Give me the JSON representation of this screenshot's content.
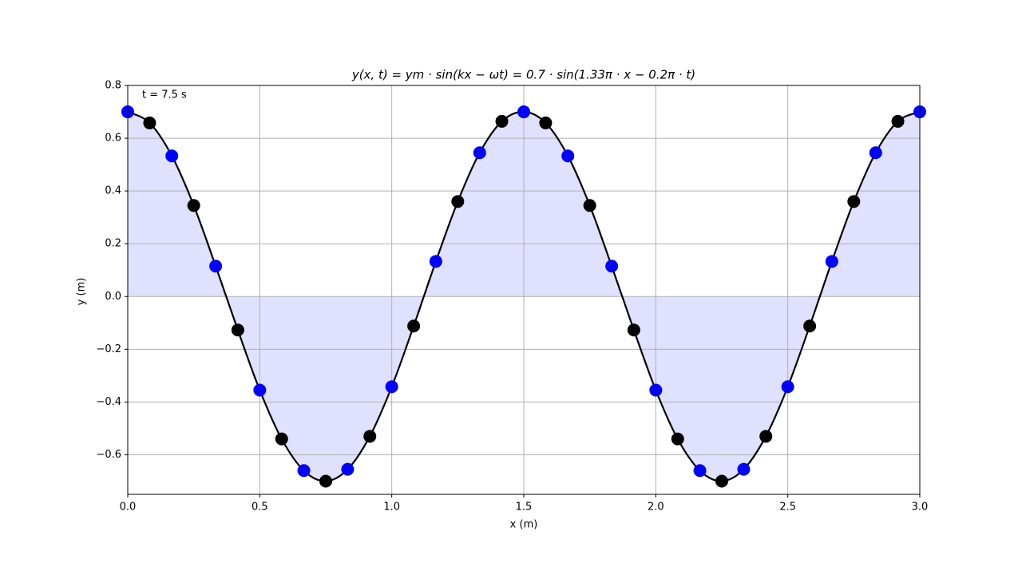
{
  "chart_data": {
    "type": "line",
    "title": "y(x, t) = ym · sin(kx − ωt) = 0.7 · sin(1.33π · x − 0.2π · t)",
    "annotation": "t = 7.5 s",
    "xlabel": "x (m)",
    "ylabel": "y (m)",
    "x": [
      0,
      0.083,
      0.167,
      0.25,
      0.333,
      0.417,
      0.5,
      0.583,
      0.667,
      0.75,
      0.833,
      0.917,
      1,
      1.083,
      1.167,
      1.25,
      1.333,
      1.417,
      1.5,
      1.583,
      1.667,
      1.75,
      1.833,
      1.917,
      2,
      2.083,
      2.167,
      2.25,
      2.333,
      2.417,
      2.5,
      2.583,
      2.667,
      2.75,
      2.833,
      2.917,
      3
    ],
    "values": [
      0.7,
      0.658,
      0.533,
      0.345,
      0.115,
      -0.127,
      -0.355,
      -0.54,
      -0.66,
      -0.7,
      -0.655,
      -0.53,
      -0.342,
      -0.112,
      0.133,
      0.36,
      0.545,
      0.664,
      0.7,
      0.658,
      0.533,
      0.345,
      0.115,
      -0.127,
      -0.355,
      -0.54,
      -0.66,
      -0.7,
      -0.655,
      -0.53,
      -0.342,
      -0.112,
      0.133,
      0.36,
      0.545,
      0.664,
      0.7
    ],
    "color": "#000000",
    "fill_color": "#e0e0ff",
    "marker_colors": [
      "#0000ff",
      "#000000"
    ],
    "xlim": [
      0,
      3
    ],
    "ylim": [
      -0.75,
      0.8
    ],
    "xticks": [
      {
        "value": 0,
        "label": "0.0"
      },
      0.5,
      {
        "value": 1,
        "label": "1.0"
      },
      1.5,
      {
        "value": 2,
        "label": "2.0"
      },
      2.5,
      {
        "value": 3,
        "label": "3.0"
      }
    ],
    "yticks": [
      {
        "value": -0.6,
        "label": "−0.6"
      },
      {
        "value": -0.4,
        "label": "−0.4"
      },
      {
        "value": -0.2,
        "label": "−0.2"
      },
      {
        "value": 0,
        "label": "0.0"
      },
      0.2,
      0.4,
      0.6,
      0.8
    ],
    "grid": true
  }
}
